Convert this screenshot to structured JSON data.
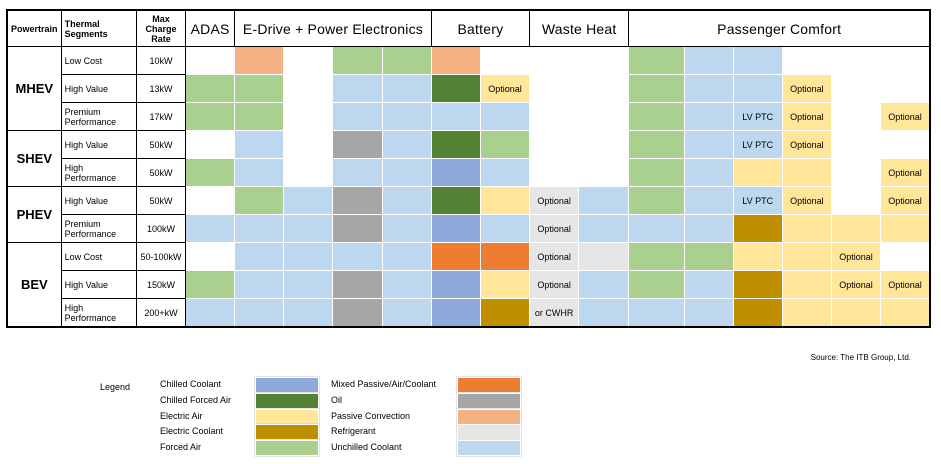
{
  "colors": {
    "chilled_coolant": "#8eaadb",
    "chilled_forced_air": "#548235",
    "electric_air": "#ffe699",
    "electric_coolant": "#bf8f00",
    "forced_air": "#a9d08e",
    "mixed": "#ed7d31",
    "oil": "#a6a6a6",
    "passive": "#f4b183",
    "refrigerant": "#e7e6e6",
    "unchilled": "#bdd7ee",
    "blank": "#ffffff"
  },
  "header": {
    "powertrain": "Powertrain",
    "segments": "Thermal Segments",
    "rate": "Max Charge Rate",
    "adas": "ADAS",
    "edrive": "E-Drive + Power Electronics",
    "battery": "Battery",
    "waste": "Waste Heat",
    "comfort": "Passenger Comfort"
  },
  "rows": [
    {
      "powertrain": "",
      "segment": "Low Cost",
      "rate": "10kW",
      "cells": [
        [
          "blank",
          ""
        ],
        [
          "passive",
          ""
        ],
        [
          "blank",
          ""
        ],
        [
          "forced_air",
          ""
        ],
        [
          "forced_air",
          ""
        ],
        [
          "passive",
          ""
        ],
        [
          "blank",
          ""
        ],
        [
          "blank",
          ""
        ],
        [
          "blank",
          ""
        ],
        [
          "forced_air",
          ""
        ],
        [
          "unchilled",
          ""
        ],
        [
          "unchilled",
          ""
        ],
        [
          "blank",
          ""
        ],
        [
          "blank",
          ""
        ],
        [
          "blank",
          ""
        ]
      ]
    },
    {
      "powertrain": "MHEV",
      "segment": "High Value",
      "rate": "13kW",
      "cells": [
        [
          "forced_air",
          ""
        ],
        [
          "forced_air",
          ""
        ],
        [
          "blank",
          ""
        ],
        [
          "unchilled",
          ""
        ],
        [
          "unchilled",
          ""
        ],
        [
          "chilled_forced_air",
          ""
        ],
        [
          "electric_air",
          "Optional"
        ],
        [
          "blank",
          ""
        ],
        [
          "blank",
          ""
        ],
        [
          "forced_air",
          ""
        ],
        [
          "unchilled",
          ""
        ],
        [
          "unchilled",
          ""
        ],
        [
          "electric_air",
          "Optional"
        ],
        [
          "blank",
          ""
        ],
        [
          "blank",
          ""
        ]
      ]
    },
    {
      "powertrain": "",
      "segment": "Premium Performance",
      "rate": "17kW",
      "cells": [
        [
          "forced_air",
          ""
        ],
        [
          "forced_air",
          ""
        ],
        [
          "blank",
          ""
        ],
        [
          "unchilled",
          ""
        ],
        [
          "unchilled",
          ""
        ],
        [
          "unchilled",
          ""
        ],
        [
          "unchilled",
          ""
        ],
        [
          "blank",
          ""
        ],
        [
          "blank",
          ""
        ],
        [
          "forced_air",
          ""
        ],
        [
          "unchilled",
          ""
        ],
        [
          "unchilled",
          "LV PTC"
        ],
        [
          "electric_air",
          "Optional"
        ],
        [
          "blank",
          ""
        ],
        [
          "electric_air",
          "Optional"
        ]
      ]
    },
    {
      "powertrain": "SHEV",
      "segment": "High Value",
      "rate": "50kW",
      "cells": [
        [
          "blank",
          ""
        ],
        [
          "unchilled",
          ""
        ],
        [
          "blank",
          ""
        ],
        [
          "oil",
          ""
        ],
        [
          "unchilled",
          ""
        ],
        [
          "chilled_forced_air",
          ""
        ],
        [
          "forced_air",
          ""
        ],
        [
          "blank",
          ""
        ],
        [
          "blank",
          ""
        ],
        [
          "forced_air",
          ""
        ],
        [
          "unchilled",
          ""
        ],
        [
          "unchilled",
          "LV PTC"
        ],
        [
          "electric_air",
          "Optional"
        ],
        [
          "blank",
          ""
        ],
        [
          "blank",
          ""
        ]
      ]
    },
    {
      "powertrain": "",
      "segment": "High Performance",
      "rate": "50kW",
      "cells": [
        [
          "forced_air",
          ""
        ],
        [
          "unchilled",
          ""
        ],
        [
          "blank",
          ""
        ],
        [
          "unchilled",
          ""
        ],
        [
          "unchilled",
          ""
        ],
        [
          "chilled_coolant",
          ""
        ],
        [
          "unchilled",
          ""
        ],
        [
          "blank",
          ""
        ],
        [
          "blank",
          ""
        ],
        [
          "forced_air",
          ""
        ],
        [
          "unchilled",
          ""
        ],
        [
          "electric_air",
          ""
        ],
        [
          "electric_air",
          ""
        ],
        [
          "blank",
          ""
        ],
        [
          "electric_air",
          "Optional"
        ]
      ]
    },
    {
      "powertrain": "PHEV",
      "segment": "High Value",
      "rate": "50kW",
      "cells": [
        [
          "blank",
          ""
        ],
        [
          "forced_air",
          ""
        ],
        [
          "unchilled",
          ""
        ],
        [
          "oil",
          ""
        ],
        [
          "unchilled",
          ""
        ],
        [
          "chilled_forced_air",
          ""
        ],
        [
          "electric_air",
          ""
        ],
        [
          "refrigerant",
          "Optional"
        ],
        [
          "unchilled",
          ""
        ],
        [
          "forced_air",
          ""
        ],
        [
          "unchilled",
          ""
        ],
        [
          "unchilled",
          "LV PTC"
        ],
        [
          "electric_air",
          "Optional"
        ],
        [
          "blank",
          ""
        ],
        [
          "electric_air",
          "Optional"
        ]
      ]
    },
    {
      "powertrain": "",
      "segment": "Premium Performance",
      "rate": "100kW",
      "cells": [
        [
          "unchilled",
          ""
        ],
        [
          "unchilled",
          ""
        ],
        [
          "unchilled",
          ""
        ],
        [
          "oil",
          ""
        ],
        [
          "unchilled",
          ""
        ],
        [
          "chilled_coolant",
          ""
        ],
        [
          "unchilled",
          ""
        ],
        [
          "refrigerant",
          "Optional"
        ],
        [
          "unchilled",
          ""
        ],
        [
          "unchilled",
          ""
        ],
        [
          "unchilled",
          ""
        ],
        [
          "electric_coolant",
          ""
        ],
        [
          "electric_air",
          ""
        ],
        [
          "electric_air",
          ""
        ],
        [
          "electric_air",
          ""
        ]
      ]
    },
    {
      "powertrain": "",
      "segment": "Low Cost",
      "rate": "50-100kW",
      "cells": [
        [
          "blank",
          ""
        ],
        [
          "unchilled",
          ""
        ],
        [
          "unchilled",
          ""
        ],
        [
          "unchilled",
          ""
        ],
        [
          "unchilled",
          ""
        ],
        [
          "mixed",
          ""
        ],
        [
          "mixed",
          ""
        ],
        [
          "refrigerant",
          "Optional"
        ],
        [
          "refrigerant",
          ""
        ],
        [
          "forced_air",
          ""
        ],
        [
          "forced_air",
          ""
        ],
        [
          "electric_air",
          ""
        ],
        [
          "electric_air",
          ""
        ],
        [
          "electric_air",
          "Optional"
        ],
        [
          "blank",
          ""
        ]
      ]
    },
    {
      "powertrain": "BEV",
      "segment": "High Value",
      "rate": "150kW",
      "cells": [
        [
          "forced_air",
          ""
        ],
        [
          "unchilled",
          ""
        ],
        [
          "unchilled",
          ""
        ],
        [
          "oil",
          ""
        ],
        [
          "unchilled",
          ""
        ],
        [
          "chilled_coolant",
          ""
        ],
        [
          "electric_air",
          ""
        ],
        [
          "refrigerant",
          "Optional"
        ],
        [
          "unchilled",
          ""
        ],
        [
          "forced_air",
          ""
        ],
        [
          "unchilled",
          ""
        ],
        [
          "electric_coolant",
          ""
        ],
        [
          "electric_air",
          ""
        ],
        [
          "electric_air",
          "Optional"
        ],
        [
          "electric_air",
          "Optional"
        ]
      ]
    },
    {
      "powertrain": "",
      "segment": "High Performance",
      "rate": "200+kW",
      "cells": [
        [
          "unchilled",
          ""
        ],
        [
          "unchilled",
          ""
        ],
        [
          "unchilled",
          ""
        ],
        [
          "oil",
          ""
        ],
        [
          "unchilled",
          ""
        ],
        [
          "chilled_coolant",
          ""
        ],
        [
          "electric_coolant",
          ""
        ],
        [
          "refrigerant",
          "or CWHR"
        ],
        [
          "unchilled",
          ""
        ],
        [
          "unchilled",
          ""
        ],
        [
          "unchilled",
          ""
        ],
        [
          "electric_coolant",
          ""
        ],
        [
          "electric_air",
          ""
        ],
        [
          "electric_air",
          ""
        ],
        [
          "electric_air",
          ""
        ]
      ]
    }
  ],
  "source": "Source: The ITB Group, Ltd.",
  "legend": {
    "title": "Legend",
    "items": [
      {
        "label": "Chilled Coolant",
        "key": "chilled_coolant"
      },
      {
        "label": "Chilled Forced Air",
        "key": "chilled_forced_air"
      },
      {
        "label": "Electric Air",
        "key": "electric_air"
      },
      {
        "label": "Electric Coolant",
        "key": "electric_coolant"
      },
      {
        "label": "Forced Air",
        "key": "forced_air"
      },
      {
        "label": "Mixed Passive/Air/Coolant",
        "key": "mixed"
      },
      {
        "label": "Oil",
        "key": "oil"
      },
      {
        "label": "Passive Convection",
        "key": "passive"
      },
      {
        "label": "Refrigerant",
        "key": "refrigerant"
      },
      {
        "label": "Unchilled Coolant",
        "key": "unchilled"
      }
    ]
  }
}
